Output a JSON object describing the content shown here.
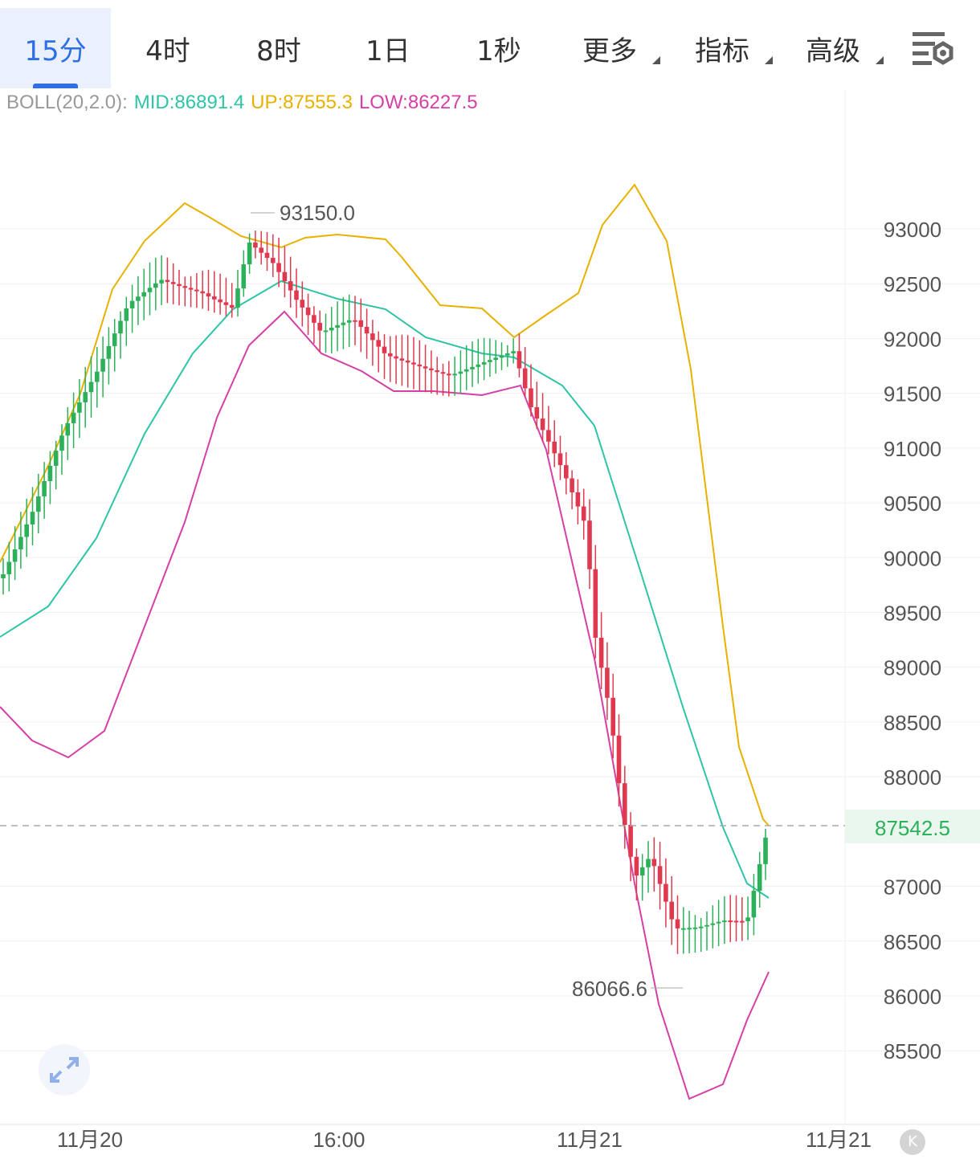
{
  "tabs": [
    {
      "label": "15分",
      "active": true
    },
    {
      "label": "4时"
    },
    {
      "label": "8时"
    },
    {
      "label": "1日"
    },
    {
      "label": "1秒"
    },
    {
      "label": "更多",
      "dropdown": true
    },
    {
      "label": "指标",
      "dropdown": true
    },
    {
      "label": "高级",
      "dropdown": true
    }
  ],
  "settings_icon": "chart-settings-icon",
  "indicator": {
    "name": "BOLL(20,2.0):",
    "mid": "MID:86891.4",
    "up": "UP:87555.3",
    "low": "LOW:86227.5",
    "colors": {
      "name": "#999999",
      "mid": "#2ec4a6",
      "up": "#e8b100",
      "low": "#d63fa6"
    }
  },
  "colors": {
    "up": "#2db05a",
    "down": "#e0394f",
    "mid": "#2ec4a6",
    "upper": "#e8b100",
    "lower": "#d63fa6",
    "grid": "#f0f0f0",
    "accent": "#2f6fe4"
  },
  "chart_data": {
    "type": "candlestick",
    "y_ticks": [
      93000,
      92500,
      92000,
      91500,
      91000,
      90500,
      90000,
      89500,
      89000,
      88500,
      88000,
      87000,
      86500,
      86000,
      85500
    ],
    "x_labels": [
      "11月20",
      "16:00",
      "11月21",
      "11月21"
    ],
    "last_price": "87542.5",
    "high_label": "93150.0",
    "low_label": "86066.6",
    "ylim": [
      85000,
      93500
    ]
  }
}
